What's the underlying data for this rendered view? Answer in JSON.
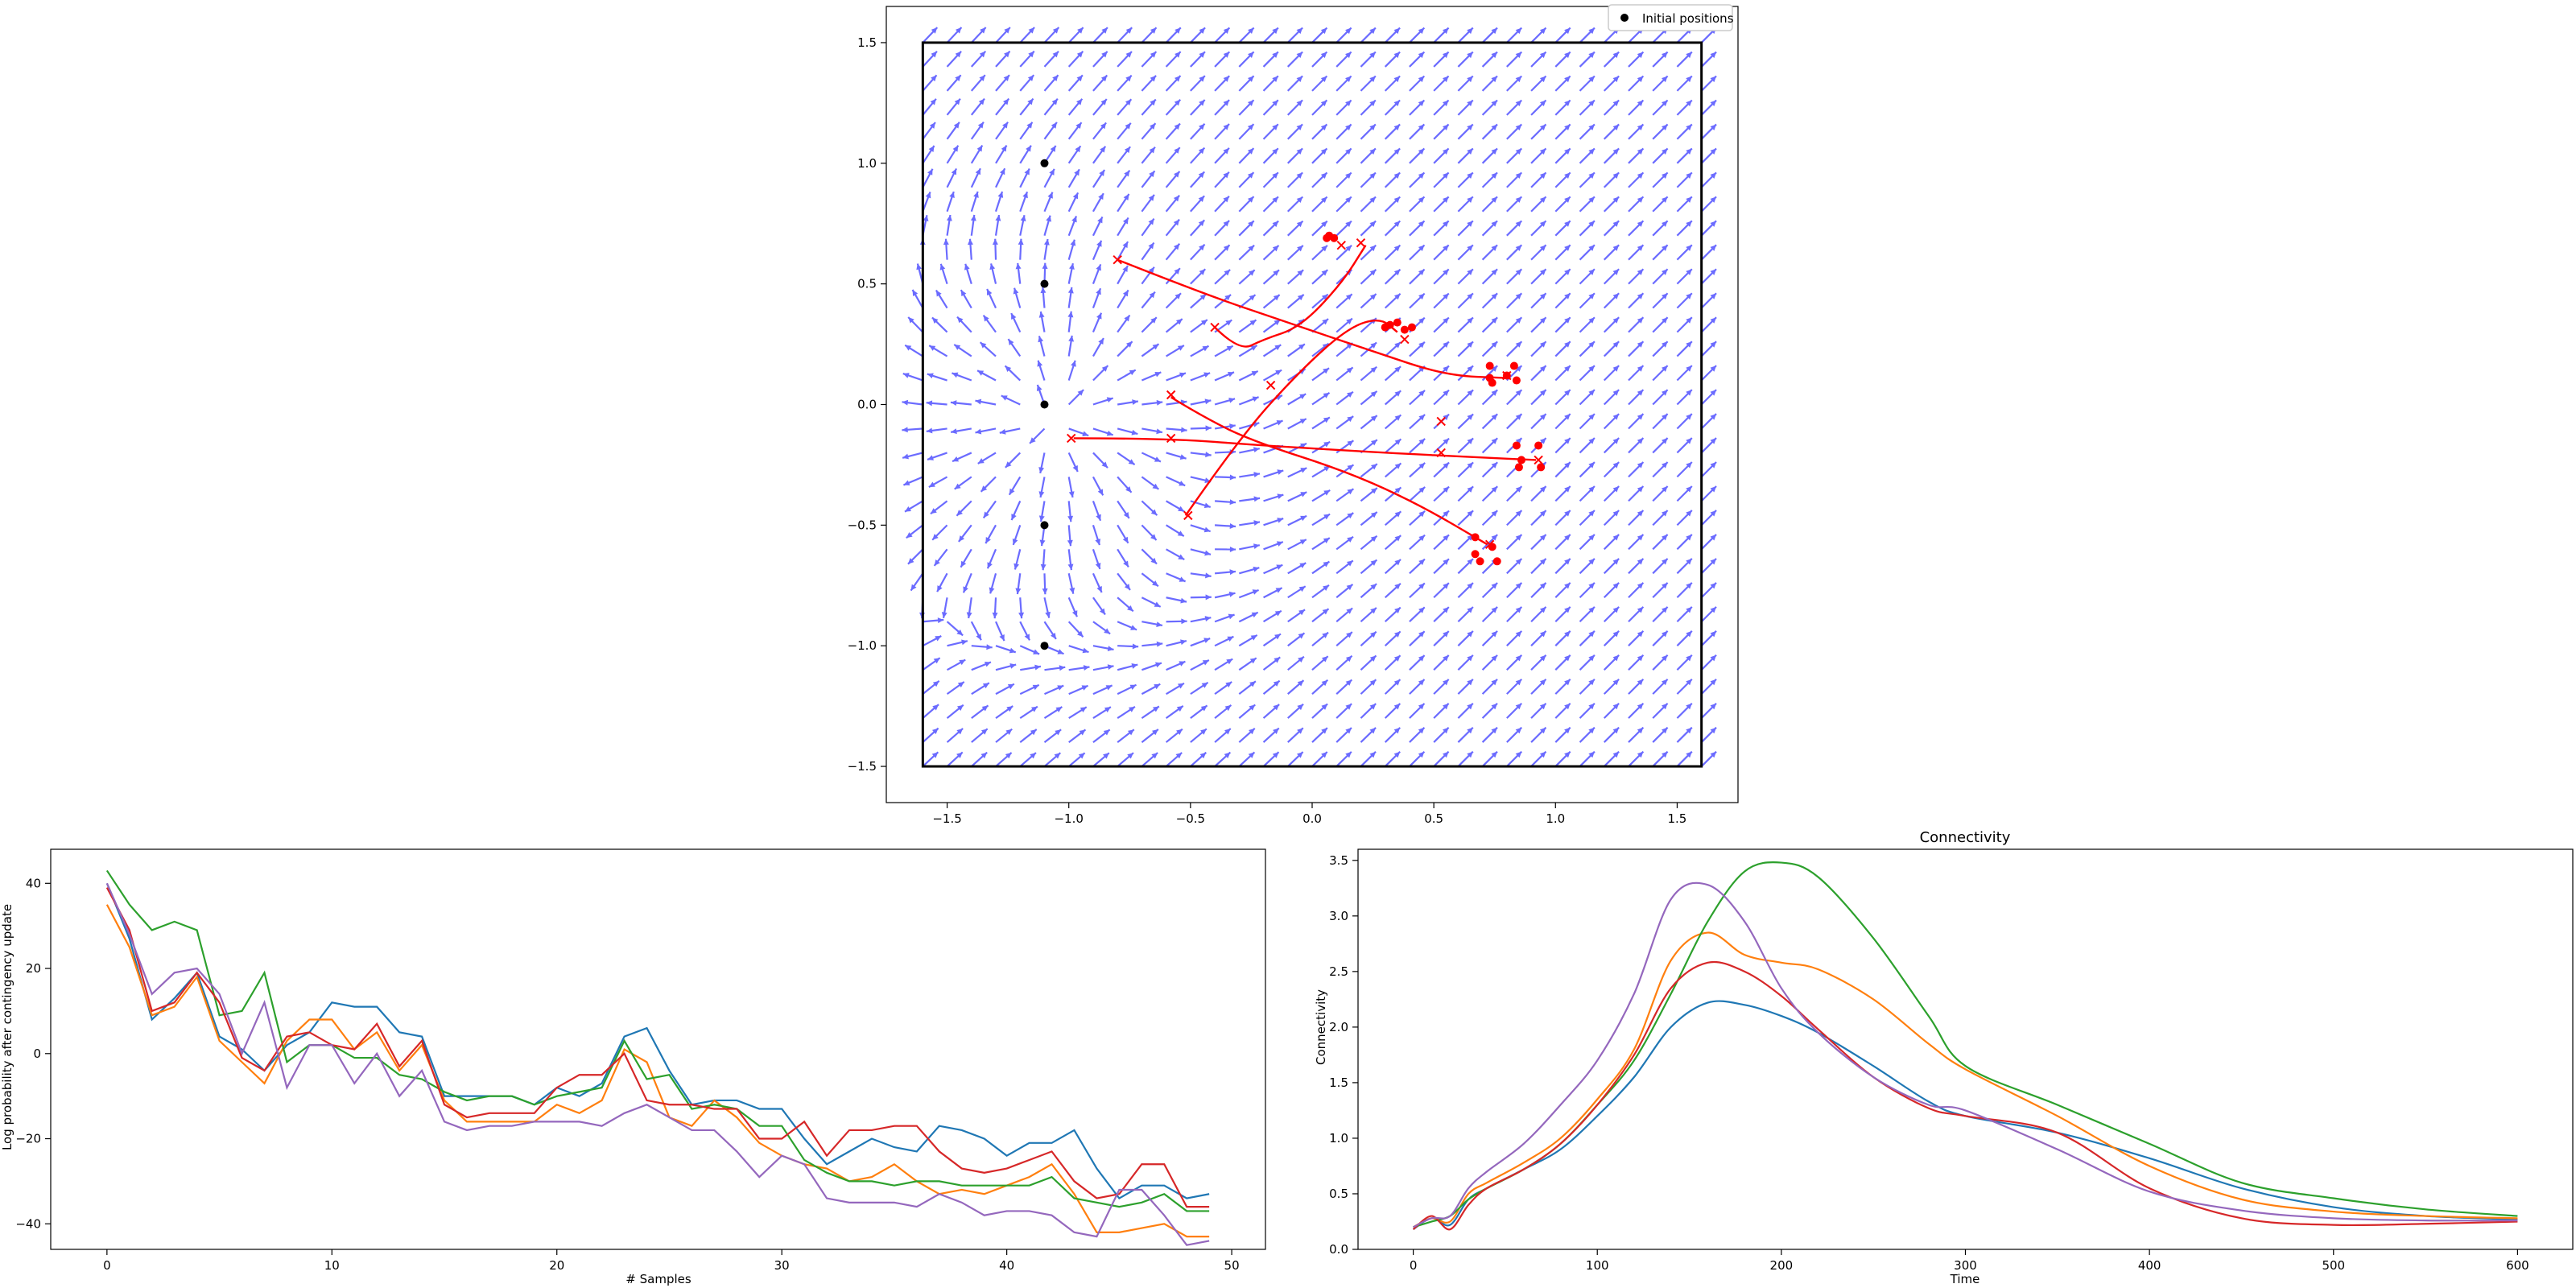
{
  "colors": {
    "quiver": "#6b6bff",
    "trajectory": "#ff0000",
    "initial": "#000000",
    "tab_blue": "#1f77b4",
    "tab_orange": "#ff7f0e",
    "tab_green": "#2ca02c",
    "tab_red": "#d62728",
    "tab_purple": "#9467bd"
  },
  "chart_data": [
    {
      "type": "scatter",
      "name": "vector-field",
      "title": "",
      "xlabel": "",
      "ylabel": "",
      "xlim": [
        -1.75,
        1.75
      ],
      "ylim": [
        -1.65,
        1.65
      ],
      "xticks": [
        -1.5,
        -1.0,
        -0.5,
        0.0,
        0.5,
        1.0,
        1.5
      ],
      "xtick_labels": [
        "−1.5",
        "−1.0",
        "−0.5",
        "0.0",
        "0.5",
        "1.0",
        "1.5"
      ],
      "yticks": [
        -1.5,
        -1.0,
        -0.5,
        0.0,
        0.5,
        1.0,
        1.5
      ],
      "ytick_labels": [
        "−1.5",
        "−1.0",
        "−0.5",
        "0.0",
        "0.5",
        "1.0",
        "1.5"
      ],
      "boundary_box": {
        "x": [
          -1.6,
          1.6
        ],
        "y": [
          -1.5,
          1.5
        ]
      },
      "legend": {
        "position": "top-right",
        "entries": [
          "Initial positions"
        ]
      },
      "field_source": [
        -1.1,
        -0.1
      ],
      "initial_positions": [
        [
          -1.1,
          1.0
        ],
        [
          -1.1,
          0.5
        ],
        [
          -1.1,
          0.0
        ],
        [
          -1.1,
          -0.5
        ],
        [
          -1.1,
          -1.0
        ]
      ],
      "trajectories": [
        [
          [
            -0.8,
            0.6
          ],
          [
            -0.45,
            0.46
          ],
          [
            -0.1,
            0.34
          ],
          [
            0.25,
            0.22
          ],
          [
            0.55,
            0.12
          ],
          [
            0.8,
            0.11
          ]
        ],
        [
          [
            -0.58,
            0.03
          ],
          [
            -0.45,
            -0.05
          ],
          [
            -0.25,
            -0.15
          ],
          [
            0.15,
            -0.28
          ],
          [
            0.45,
            -0.42
          ],
          [
            0.72,
            -0.58
          ]
        ],
        [
          [
            -0.98,
            -0.14
          ],
          [
            -0.6,
            -0.14
          ],
          [
            -0.2,
            -0.17
          ],
          [
            0.3,
            -0.2
          ],
          [
            0.7,
            -0.22
          ],
          [
            0.92,
            -0.23
          ]
        ],
        [
          [
            -0.4,
            0.32
          ],
          [
            -0.3,
            0.22
          ],
          [
            -0.2,
            0.27
          ],
          [
            -0.05,
            0.32
          ],
          [
            0.12,
            0.5
          ],
          [
            0.22,
            0.66
          ]
        ],
        [
          [
            -0.52,
            -0.46
          ],
          [
            -0.3,
            -0.14
          ],
          [
            -0.05,
            0.14
          ],
          [
            0.15,
            0.32
          ],
          [
            0.28,
            0.36
          ],
          [
            0.35,
            0.3
          ]
        ]
      ],
      "markers_x": [
        [
          -0.8,
          0.6
        ],
        [
          -0.4,
          0.32
        ],
        [
          0.12,
          0.66
        ],
        [
          0.2,
          0.67
        ],
        [
          -0.58,
          0.04
        ],
        [
          -0.17,
          0.08
        ],
        [
          -0.99,
          -0.14
        ],
        [
          -0.58,
          -0.14
        ],
        [
          0.53,
          -0.07
        ],
        [
          0.53,
          -0.2
        ],
        [
          -0.51,
          -0.46
        ],
        [
          0.38,
          0.27
        ],
        [
          0.8,
          0.12
        ],
        [
          0.73,
          -0.58
        ],
        [
          0.93,
          -0.23
        ]
      ],
      "final_points": [
        [
          0.06,
          0.69
        ],
        [
          0.09,
          0.69
        ],
        [
          0.07,
          0.7
        ],
        [
          0.32,
          0.33
        ],
        [
          0.35,
          0.34
        ],
        [
          0.3,
          0.32
        ],
        [
          0.38,
          0.31
        ],
        [
          0.41,
          0.32
        ],
        [
          0.73,
          0.16
        ],
        [
          0.73,
          0.11
        ],
        [
          0.74,
          0.09
        ],
        [
          0.8,
          0.12
        ],
        [
          0.83,
          0.16
        ],
        [
          0.84,
          0.1
        ],
        [
          0.84,
          -0.17
        ],
        [
          0.86,
          -0.23
        ],
        [
          0.85,
          -0.26
        ],
        [
          0.93,
          -0.17
        ],
        [
          0.94,
          -0.26
        ],
        [
          0.67,
          -0.55
        ],
        [
          0.67,
          -0.62
        ],
        [
          0.69,
          -0.65
        ],
        [
          0.74,
          -0.59
        ],
        [
          0.76,
          -0.65
        ]
      ]
    },
    {
      "type": "line",
      "name": "log-probability",
      "title": "",
      "xlabel": "# Samples",
      "ylabel": "Log probability after contingency update",
      "xlim": [
        -2.5,
        51.5
      ],
      "ylim": [
        -46,
        48
      ],
      "xticks": [
        0,
        10,
        20,
        30,
        40,
        50
      ],
      "yticks": [
        -40,
        -20,
        0,
        20,
        40
      ],
      "ytick_labels": [
        "−40",
        "−20",
        "0",
        "20",
        "40"
      ],
      "x": [
        0,
        1,
        2,
        3,
        4,
        5,
        6,
        7,
        8,
        9,
        10,
        11,
        12,
        13,
        14,
        15,
        16,
        17,
        18,
        19,
        20,
        21,
        22,
        23,
        24,
        25,
        26,
        27,
        28,
        29,
        30,
        31,
        32,
        33,
        34,
        35,
        36,
        37,
        38,
        39,
        40,
        41,
        42,
        43,
        44,
        45,
        46,
        47,
        48,
        49
      ],
      "series": [
        {
          "color": "tab_blue",
          "values": [
            40,
            27,
            8,
            13,
            19,
            4,
            1,
            -4,
            2,
            5,
            12,
            11,
            11,
            5,
            4,
            -10,
            -10,
            -10,
            -10,
            -12,
            -8,
            -10,
            -7,
            4,
            6,
            -4,
            -12,
            -11,
            -11,
            -13,
            -13,
            -20,
            -26,
            -23,
            -20,
            -22,
            -23,
            -17,
            -18,
            -20,
            -24,
            -21,
            -21,
            -18,
            -27,
            -34,
            -31,
            -31,
            -34,
            -33
          ]
        },
        {
          "color": "tab_orange",
          "values": [
            35,
            25,
            9,
            11,
            18,
            3,
            -2,
            -7,
            3,
            8,
            8,
            1,
            5,
            -4,
            2,
            -11,
            -16,
            -16,
            -16,
            -16,
            -12,
            -14,
            -11,
            1,
            -2,
            -15,
            -17,
            -11,
            -15,
            -21,
            -24,
            -26,
            -27,
            -30,
            -29,
            -26,
            -30,
            -33,
            -32,
            -33,
            -31,
            -29,
            -26,
            -33,
            -42,
            -42,
            -41,
            -40,
            -43,
            -43
          ]
        },
        {
          "color": "tab_green",
          "values": [
            43,
            35,
            29,
            31,
            29,
            9,
            10,
            19,
            -2,
            2,
            2,
            -1,
            -1,
            -5,
            -6,
            -9,
            -11,
            -10,
            -10,
            -12,
            -10,
            -9,
            -8,
            3,
            -6,
            -5,
            -13,
            -12,
            -13,
            -17,
            -17,
            -25,
            -28,
            -30,
            -30,
            -31,
            -30,
            -30,
            -31,
            -31,
            -31,
            -31,
            -29,
            -34,
            -35,
            -36,
            -35,
            -33,
            -37,
            -37
          ]
        },
        {
          "color": "tab_red",
          "values": [
            39,
            29,
            10,
            12,
            19,
            12,
            -1,
            -4,
            4,
            5,
            2,
            1,
            7,
            -3,
            3,
            -12,
            -15,
            -14,
            -14,
            -14,
            -8,
            -5,
            -5,
            0,
            -11,
            -12,
            -12,
            -13,
            -13,
            -20,
            -20,
            -16,
            -24,
            -18,
            -18,
            -17,
            -17,
            -23,
            -27,
            -28,
            -27,
            -25,
            -23,
            -30,
            -34,
            -33,
            -26,
            -26,
            -36,
            -36
          ]
        },
        {
          "color": "tab_purple",
          "values": [
            40,
            28,
            14,
            19,
            20,
            14,
            0,
            12,
            -8,
            2,
            2,
            -7,
            0,
            -10,
            -4,
            -16,
            -18,
            -17,
            -17,
            -16,
            -16,
            -16,
            -17,
            -14,
            -12,
            -15,
            -18,
            -18,
            -23,
            -29,
            -24,
            -26,
            -34,
            -35,
            -35,
            -35,
            -36,
            -33,
            -35,
            -38,
            -37,
            -37,
            -38,
            -42,
            -43,
            -32,
            -32,
            -38,
            -45,
            -44
          ]
        }
      ]
    },
    {
      "type": "line",
      "name": "connectivity",
      "title": "Connectivity",
      "xlabel": "Time",
      "ylabel": "Connectivity",
      "xlim": [
        -30,
        630
      ],
      "ylim": [
        0,
        3.6
      ],
      "xticks": [
        0,
        100,
        200,
        300,
        400,
        500,
        600
      ],
      "yticks": [
        0.0,
        0.5,
        1.0,
        1.5,
        2.0,
        2.5,
        3.0,
        3.5
      ],
      "ytick_labels": [
        "0.0",
        "0.5",
        "1.0",
        "1.5",
        "2.0",
        "2.5",
        "3.0",
        "3.5"
      ],
      "x": [
        0,
        10,
        20,
        30,
        40,
        60,
        80,
        100,
        120,
        140,
        160,
        180,
        200,
        220,
        250,
        280,
        300,
        350,
        400,
        450,
        500,
        550,
        600
      ],
      "series": [
        {
          "color": "tab_blue",
          "values": [
            0.18,
            0.28,
            0.22,
            0.45,
            0.55,
            0.72,
            0.9,
            1.2,
            1.55,
            2.0,
            2.22,
            2.2,
            2.1,
            1.95,
            1.65,
            1.33,
            1.2,
            1.05,
            0.82,
            0.55,
            0.38,
            0.3,
            0.27
          ]
        },
        {
          "color": "tab_orange",
          "values": [
            0.2,
            0.28,
            0.25,
            0.5,
            0.6,
            0.78,
            1.0,
            1.35,
            1.8,
            2.6,
            2.85,
            2.65,
            2.58,
            2.52,
            2.25,
            1.85,
            1.62,
            1.2,
            0.75,
            0.45,
            0.34,
            0.3,
            0.28
          ]
        },
        {
          "color": "tab_green",
          "values": [
            0.2,
            0.25,
            0.3,
            0.45,
            0.55,
            0.72,
            0.95,
            1.3,
            1.7,
            2.3,
            2.95,
            3.4,
            3.48,
            3.35,
            2.8,
            2.1,
            1.65,
            1.3,
            0.95,
            0.6,
            0.46,
            0.36,
            0.3
          ]
        },
        {
          "color": "tab_red",
          "values": [
            0.18,
            0.3,
            0.18,
            0.4,
            0.55,
            0.72,
            0.95,
            1.3,
            1.75,
            2.35,
            2.58,
            2.5,
            2.28,
            1.98,
            1.55,
            1.27,
            1.2,
            1.05,
            0.55,
            0.28,
            0.22,
            0.23,
            0.25
          ]
        },
        {
          "color": "tab_purple",
          "values": [
            0.2,
            0.28,
            0.3,
            0.55,
            0.7,
            0.95,
            1.3,
            1.7,
            2.3,
            3.15,
            3.28,
            2.95,
            2.35,
            1.95,
            1.55,
            1.3,
            1.25,
            0.9,
            0.52,
            0.35,
            0.28,
            0.26,
            0.26
          ]
        }
      ]
    }
  ]
}
